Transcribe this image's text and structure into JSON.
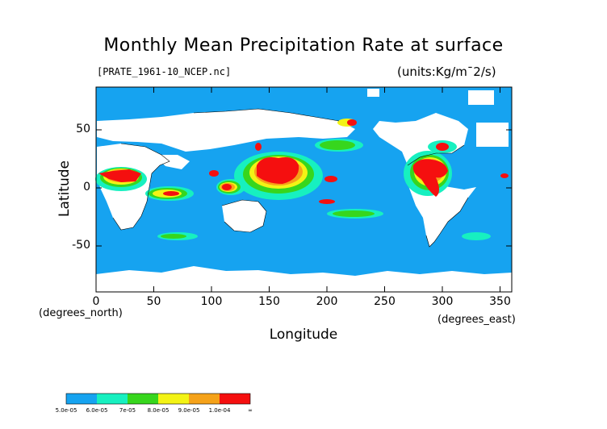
{
  "header": {
    "title": "Monthly Mean Precipitation Rate at surface",
    "file_label": "[PRATE_1961-10_NCEP.nc]",
    "units": "(units:Kg/m¯2/s)"
  },
  "axes": {
    "ylabel": "Latitude",
    "xlabel": "Longitude",
    "yunit": "(degrees_north)",
    "xunit": "(degrees_east)",
    "yticks": [
      "50",
      "0",
      "-50"
    ],
    "xticks": [
      "0",
      "50",
      "100",
      "150",
      "200",
      "250",
      "300",
      "350"
    ]
  },
  "colorbar": {
    "labels": [
      "5.0e-05",
      "6.0e-05",
      "7e-05",
      "8.0e-05",
      "9.0e-05",
      "1.0e-04",
      "∞"
    ],
    "colors": [
      "#16a3f0",
      "#17f0c0",
      "#37d61d",
      "#f3f315",
      "#f5a219",
      "#f50f0f"
    ]
  },
  "colors": {
    "ocean": "#16a3f0",
    "missing": "#ffffff",
    "high": "#f50f0f",
    "orange": "#f5a219",
    "yellow": "#f3f315",
    "green": "#37d61d",
    "cyan": "#17f0c0"
  },
  "map": {
    "lon_range": [
      0,
      360
    ],
    "lat_range": [
      -88,
      88
    ]
  }
}
